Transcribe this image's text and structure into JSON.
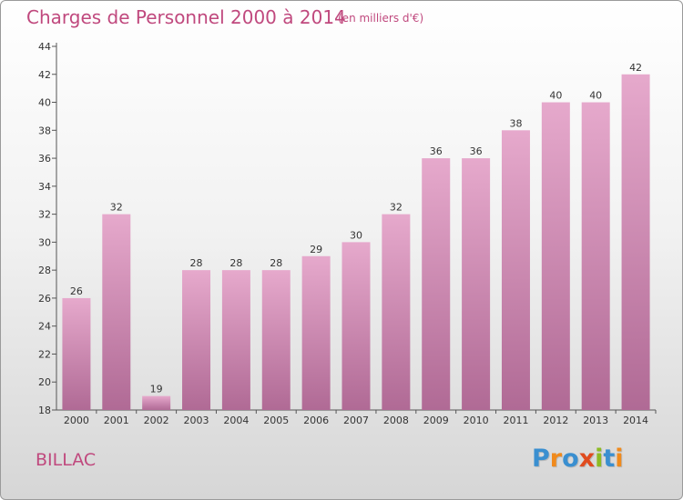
{
  "title": "Charges de Personnel 2000 à 2014",
  "subtitle": "(en milliers d'€)",
  "place": "BILLAC",
  "logo": {
    "text": "Proxiti",
    "colors": [
      "#3a8fd0",
      "#f08a1c",
      "#3a8fd0",
      "#e04b1e",
      "#8dbb22",
      "#3a8fd0",
      "#f08a1c"
    ]
  },
  "colors": {
    "bar_top": "#e6a9cc",
    "bar_bottom": "#b06a95",
    "text": "#c0497e",
    "axis": "#555555"
  },
  "chart_data": {
    "type": "bar",
    "categories": [
      "2000",
      "2001",
      "2002",
      "2003",
      "2004",
      "2005",
      "2006",
      "2007",
      "2008",
      "2009",
      "2010",
      "2011",
      "2012",
      "2013",
      "2014"
    ],
    "values": [
      26,
      32,
      19,
      28,
      28,
      28,
      29,
      30,
      32,
      36,
      36,
      38,
      40,
      40,
      42
    ],
    "ylim": [
      18,
      44
    ],
    "yticks": [
      18,
      20,
      22,
      24,
      26,
      28,
      30,
      32,
      34,
      36,
      38,
      40,
      42,
      44
    ],
    "grid": false,
    "title": "Charges de Personnel 2000 à 2014",
    "xlabel": "",
    "ylabel": ""
  }
}
